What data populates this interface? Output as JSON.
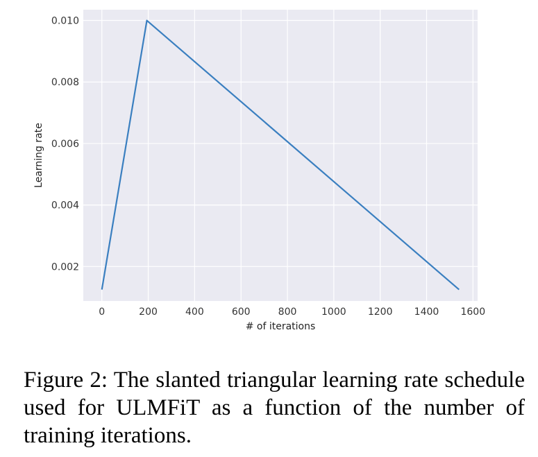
{
  "figure": {
    "caption": "Figure 2:  The slanted triangular learning rate schedule used for ULMFiT as a function of the number of training iterations."
  },
  "colors": {
    "plot_background": "#eaeaf2",
    "grid": "#ffffff",
    "line": "#3a7fc0"
  },
  "chart_data": {
    "type": "line",
    "title": "",
    "xlabel": "# of iterations",
    "ylabel": "Learning rate",
    "xlim": [
      -80,
      1620
    ],
    "ylim": [
      0.00088,
      0.01035
    ],
    "x_ticks": [
      0,
      200,
      400,
      600,
      800,
      1000,
      1200,
      1400,
      1600
    ],
    "y_ticks": [
      0.002,
      0.004,
      0.006,
      0.008,
      0.01
    ],
    "y_tick_labels": [
      "0.002",
      "0.004",
      "0.006",
      "0.008",
      "0.010"
    ],
    "grid": true,
    "series": [
      {
        "x": [
          0,
          194,
          1540
        ],
        "y": [
          0.00125,
          0.01,
          0.00125
        ]
      }
    ]
  }
}
